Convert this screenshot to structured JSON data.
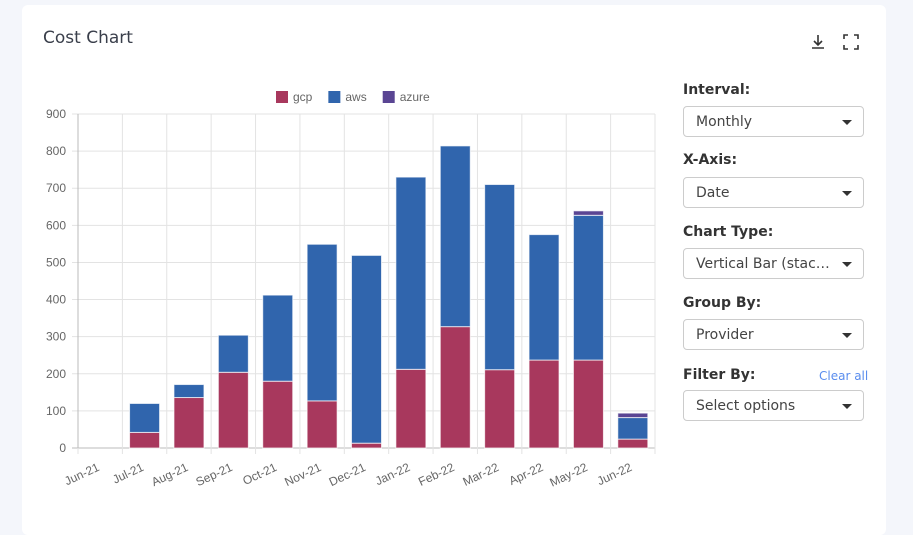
{
  "header": {
    "title": "Cost Chart",
    "download_icon": "download-icon",
    "fullscreen_icon": "fullscreen-icon"
  },
  "controls": {
    "interval": {
      "label": "Interval:",
      "value": "Monthly"
    },
    "x_axis": {
      "label": "X-Axis:",
      "value": "Date"
    },
    "chart_type": {
      "label": "Chart Type:",
      "value": "Vertical Bar (stacked)"
    },
    "group_by": {
      "label": "Group By:",
      "value": "Provider"
    },
    "filter_by": {
      "label": "Filter By:",
      "value": "Select options",
      "clear_label": "Clear all"
    }
  },
  "chart_data": {
    "type": "bar",
    "stacked": true,
    "title": "",
    "xlabel": "",
    "ylabel": "",
    "ylim": [
      0,
      900
    ],
    "yticks": [
      0,
      100,
      200,
      300,
      400,
      500,
      600,
      700,
      800,
      900
    ],
    "grid": true,
    "legend_position": "top",
    "categories": [
      "Jun-21",
      "Jul-21",
      "Aug-21",
      "Sep-21",
      "Oct-21",
      "Nov-21",
      "Dec-21",
      "Jan-22",
      "Feb-22",
      "Mar-22",
      "Apr-22",
      "May-22",
      "Jun-22"
    ],
    "series": [
      {
        "name": "gcp",
        "color": "#a8385d",
        "values": [
          0,
          42,
          136,
          204,
          180,
          127,
          13,
          212,
          327,
          211,
          237,
          237,
          24
        ]
      },
      {
        "name": "aws",
        "color": "#3065ad",
        "values": [
          0,
          78,
          35,
          100,
          232,
          422,
          506,
          518,
          487,
          499,
          338,
          390,
          58
        ]
      },
      {
        "name": "azure",
        "color": "#5a4593",
        "values": [
          0,
          0,
          0,
          0,
          0,
          0,
          0,
          0,
          0,
          0,
          0,
          12,
          12
        ]
      }
    ]
  }
}
